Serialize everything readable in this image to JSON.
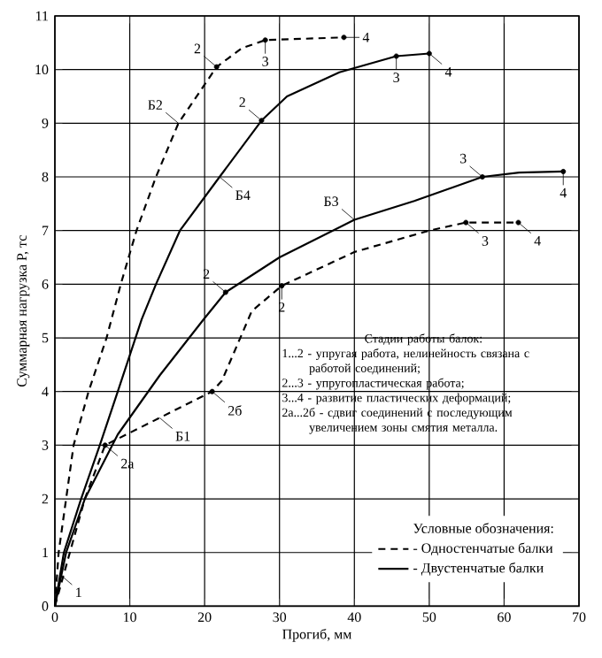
{
  "chart_data": {
    "type": "line",
    "xlabel": "Прогиб, мм",
    "ylabel": "Суммарная нагрузка P, тс",
    "legend_title": "Условные обозначения:",
    "xlim": [
      0,
      70
    ],
    "ylim": [
      0,
      11
    ],
    "xticks": [
      0,
      10,
      20,
      30,
      40,
      50,
      60,
      70
    ],
    "yticks": [
      0,
      1,
      2,
      3,
      4,
      5,
      6,
      7,
      8,
      9,
      10,
      11
    ],
    "grid": true,
    "legend": "bottom right",
    "series": [
      {
        "name": "- Одностенчатые балки",
        "color": "#000000",
        "line_style": "dashed",
        "x": [
          0,
          2,
          4,
          6.7,
          21,
          22.3,
          26.3,
          30.3,
          40,
          50,
          54.9,
          61.9
        ],
        "values": [
          0,
          1,
          2,
          3.0,
          4.0,
          4.2,
          5.5,
          5.97,
          6.6,
          7.0,
          7.15,
          7.15
        ]
      },
      {
        "color": "#000000",
        "line_style": "dashed",
        "x": [
          0,
          0.5,
          1.5,
          2.5,
          4.5,
          6.9,
          8.8,
          10.9,
          13.5,
          16.5,
          21.6,
          25,
          28.1,
          38.6
        ],
        "values": [
          0,
          1,
          2,
          3,
          4,
          5,
          6,
          7,
          8,
          9,
          10.05,
          10.4,
          10.55,
          10.6
        ]
      },
      {
        "name": "- Двустенчатые балки",
        "color": "#000000",
        "line_style": "solid",
        "x": [
          0,
          1.5,
          4,
          8.4,
          14,
          19.9,
          22.8,
          30,
          40,
          48,
          57.1,
          62,
          67.9
        ],
        "values": [
          0,
          1,
          2,
          3.2,
          4.3,
          5.35,
          5.85,
          6.5,
          7.2,
          7.55,
          8.0,
          8.08,
          8.1
        ]
      },
      {
        "color": "#000000",
        "line_style": "solid",
        "x": [
          0,
          1.2,
          3.5,
          6,
          8.4,
          11.6,
          13.5,
          16.7,
          22,
          27.6,
          31,
          38,
          45.6,
          50
        ],
        "values": [
          0,
          1,
          2,
          3,
          4,
          5.35,
          6,
          7,
          8,
          9.05,
          9.5,
          9.95,
          10.25,
          10.3
        ]
      },
      {
        "type": "scatter",
        "marker": "circle",
        "color": "#000000",
        "x": [
          21.6,
          28.1,
          38.6,
          27.6,
          45.6,
          50,
          22.8,
          57.1,
          67.9,
          30.3,
          54.9,
          61.9,
          6.7,
          21
        ],
        "values": [
          10.05,
          10.55,
          10.6,
          9.05,
          10.25,
          10.3,
          5.85,
          8.0,
          8.1,
          5.97,
          7.15,
          7.15,
          3.0,
          4.0
        ]
      }
    ],
    "annotations": [
      "Стадии работы балок:",
      "1...2 - упругая работа, нелинейность связана с работой соединений;",
      "2...3 - упругопластическая работа;",
      "3...4 - развитие пластических деформаций;",
      "2а...2б - сдвиг соединений с последующим увеличением зоны смятия металла.",
      {
        "text": "Б2",
        "x": 16.5,
        "y": 9
      },
      {
        "text": "Б4",
        "x": 22,
        "y": 8
      },
      {
        "text": "Б3",
        "x": 40,
        "y": 7.2
      },
      {
        "text": "Б1",
        "x": 14,
        "y": 3.51
      },
      {
        "text": "2",
        "x": 21.6,
        "y": 10.05
      },
      {
        "text": "3",
        "x": 28.1,
        "y": 10.55
      },
      {
        "text": "4",
        "x": 38.6,
        "y": 10.6
      },
      {
        "text": "2",
        "x": 27.6,
        "y": 9.05
      },
      {
        "text": "3",
        "x": 45.6,
        "y": 10.25
      },
      {
        "text": "4",
        "x": 50,
        "y": 10.3
      },
      {
        "text": "2",
        "x": 22.8,
        "y": 5.85
      },
      {
        "text": "3",
        "x": 57.1,
        "y": 8.0
      },
      {
        "text": "4",
        "x": 67.9,
        "y": 8.1
      },
      {
        "text": "2",
        "x": 30.3,
        "y": 5.97
      },
      {
        "text": "3",
        "x": 54.9,
        "y": 7.15
      },
      {
        "text": "4",
        "x": 61.9,
        "y": 7.15
      },
      {
        "text": "2б",
        "x": 21,
        "y": 4.0
      },
      {
        "text": "2а",
        "x": 6.7,
        "y": 3.0
      },
      {
        "text": "1",
        "x": 0.6,
        "y": 0.6
      }
    ]
  }
}
